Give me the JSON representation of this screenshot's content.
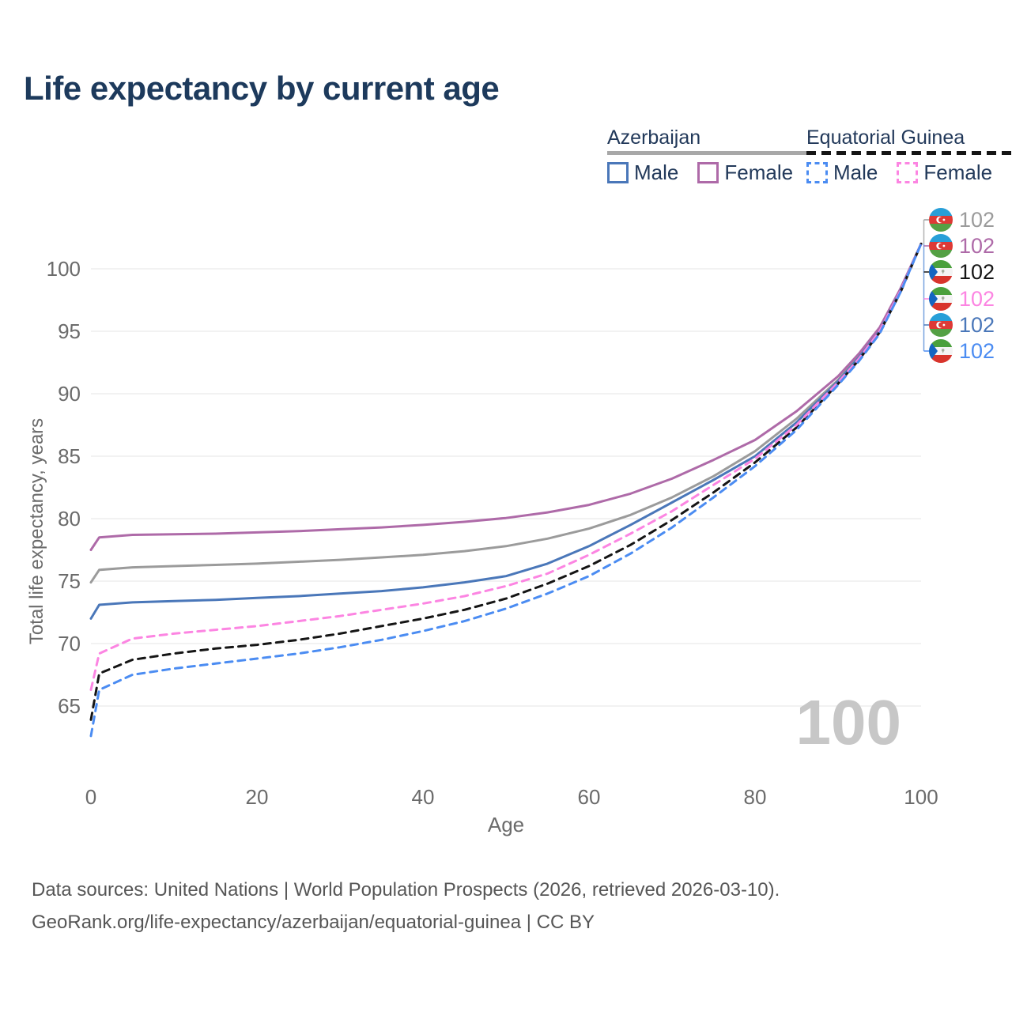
{
  "header": {
    "title": "Life expectancy by current age"
  },
  "legend": {
    "groups": [
      {
        "country": "Azerbaijan",
        "style": "solid",
        "underline_color": "#a8a8a8",
        "items": [
          {
            "label": "Male",
            "color": "#4a77b9"
          },
          {
            "label": "Female",
            "color": "#ae6aa8"
          }
        ]
      },
      {
        "country": "Equatorial Guinea",
        "style": "dashed",
        "underline_color": "#151515",
        "items": [
          {
            "label": "Male",
            "color": "#4b8cf2"
          },
          {
            "label": "Female",
            "color": "#fc85e2"
          }
        ]
      }
    ]
  },
  "chart_data": {
    "type": "line",
    "title": "Life expectancy by current age",
    "xlabel": "Age",
    "ylabel": "Total life expectancy, years",
    "xlim": [
      0,
      100
    ],
    "ylim": [
      62,
      103
    ],
    "x_ticks": [
      0,
      20,
      40,
      60,
      80,
      100
    ],
    "y_ticks": [
      65,
      70,
      75,
      80,
      85,
      90,
      95,
      100
    ],
    "grid": true,
    "legend_position": "top-right",
    "x": [
      0,
      1,
      5,
      10,
      15,
      20,
      25,
      30,
      35,
      40,
      45,
      50,
      55,
      60,
      65,
      70,
      75,
      80,
      85,
      90,
      92.5,
      95,
      97.5,
      100
    ],
    "series": [
      {
        "name": "Azerbaijan Total",
        "country": "az",
        "color": "#9b9b9b",
        "dash": "solid",
        "values": [
          74.9,
          75.9,
          76.1,
          76.2,
          76.3,
          76.4,
          76.55,
          76.7,
          76.9,
          77.1,
          77.4,
          77.8,
          78.4,
          79.2,
          80.3,
          81.7,
          83.4,
          85.4,
          88.0,
          91.1,
          93.0,
          95.1,
          98.3,
          102
        ]
      },
      {
        "name": "Azerbaijan Female",
        "country": "az",
        "color": "#ae6aa8",
        "dash": "solid",
        "values": [
          77.5,
          78.5,
          78.7,
          78.75,
          78.8,
          78.9,
          79.0,
          79.15,
          79.3,
          79.5,
          79.75,
          80.05,
          80.5,
          81.1,
          82.0,
          83.2,
          84.7,
          86.3,
          88.6,
          91.4,
          93.2,
          95.3,
          98.4,
          102
        ]
      },
      {
        "name": "Azerbaijan Male",
        "country": "az",
        "color": "#4a77b9",
        "dash": "solid",
        "values": [
          72.0,
          73.1,
          73.3,
          73.4,
          73.5,
          73.65,
          73.8,
          74.0,
          74.2,
          74.5,
          74.9,
          75.4,
          76.4,
          77.8,
          79.5,
          81.3,
          83.1,
          85.0,
          87.7,
          91.0,
          92.9,
          95.0,
          98.2,
          102
        ]
      },
      {
        "name": "Equatorial Guinea Total",
        "country": "gq",
        "color": "#151515",
        "dash": "dashed",
        "values": [
          63.9,
          67.6,
          68.7,
          69.2,
          69.6,
          69.9,
          70.3,
          70.8,
          71.4,
          72.0,
          72.7,
          73.6,
          74.8,
          76.2,
          77.9,
          79.9,
          82.1,
          84.5,
          87.3,
          90.8,
          92.7,
          94.9,
          98.1,
          102
        ]
      },
      {
        "name": "Equatorial Guinea Female",
        "country": "gq",
        "color": "#fc85e2",
        "dash": "dashed",
        "values": [
          66.3,
          69.2,
          70.4,
          70.8,
          71.1,
          71.4,
          71.8,
          72.2,
          72.7,
          73.2,
          73.8,
          74.6,
          75.6,
          77.1,
          78.8,
          80.6,
          82.7,
          84.8,
          87.5,
          90.9,
          92.8,
          95.0,
          98.2,
          102
        ]
      },
      {
        "name": "Equatorial Guinea Male",
        "country": "gq",
        "color": "#4b8cf2",
        "dash": "dashed",
        "values": [
          62.6,
          66.3,
          67.5,
          68.0,
          68.4,
          68.8,
          69.2,
          69.7,
          70.3,
          71.0,
          71.8,
          72.8,
          74.0,
          75.4,
          77.2,
          79.3,
          81.7,
          84.2,
          87.1,
          90.7,
          92.6,
          94.8,
          98.1,
          102
        ]
      }
    ]
  },
  "endpoint_labels": [
    {
      "country": "az",
      "value": "102",
      "color": "#9b9b9b"
    },
    {
      "country": "az",
      "value": "102",
      "color": "#ae6aa8"
    },
    {
      "country": "gq",
      "value": "102",
      "color": "#151515"
    },
    {
      "country": "gq",
      "value": "102",
      "color": "#fc85e2"
    },
    {
      "country": "az",
      "value": "102",
      "color": "#4a77b9"
    },
    {
      "country": "gq",
      "value": "102",
      "color": "#4b8cf2"
    }
  ],
  "watermark": {
    "text": "100"
  },
  "footer": {
    "line1": "Data sources: United Nations | World Population Prospects (2026, retrieved 2026-03-10).",
    "line2": "GeoRank.org/life-expectancy/azerbaijan/equatorial-guinea | CC BY"
  }
}
